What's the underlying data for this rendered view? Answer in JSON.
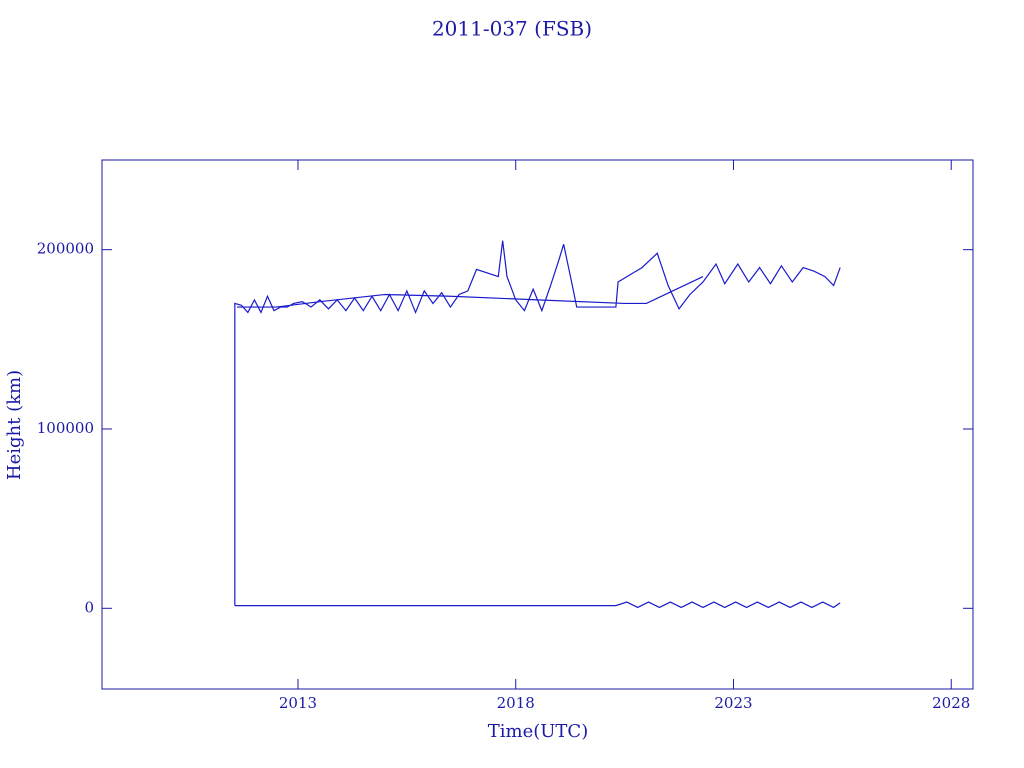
{
  "chart_data": {
    "type": "line",
    "title": "2011-037 (FSB)",
    "x_label": "Time(UTC)",
    "y_label": "Height (km)",
    "color": "#1a1acc",
    "xlim": [
      2008.5,
      2028.5
    ],
    "xticks": [
      2013,
      2018,
      2023,
      2028
    ],
    "ylim": [
      -45000,
      250000
    ],
    "yticks": [
      0,
      100000,
      200000
    ],
    "x": [
      2011.55,
      2011.55,
      2011.7,
      2011.85,
      2012.0,
      2012.15,
      2012.3,
      2012.45,
      2012.6,
      2012.75,
      2012.9,
      2013.1,
      2013.3,
      2013.5,
      2013.7,
      2013.9,
      2014.1,
      2014.3,
      2014.5,
      2014.7,
      2014.9,
      2015.1,
      2015.3,
      2015.5,
      2015.7,
      2015.9,
      2016.1,
      2016.3,
      2016.5,
      2016.7,
      2016.9,
      2017.1,
      2017.6,
      2017.7,
      2017.8,
      2018.0,
      2018.2,
      2018.4,
      2018.6,
      2018.8,
      2019.0,
      2019.1,
      2019.3,
      2019.4,
      2020.3,
      2020.35,
      2020.9,
      2021.25,
      2021.5,
      2021.75,
      2022.0,
      2022.3,
      2022.6,
      2022.8,
      2023.1,
      2023.35,
      2023.6,
      2023.85,
      2024.1,
      2024.35,
      2024.6,
      2024.85,
      2025.1,
      2025.3,
      2025.45,
      null,
      2011.6,
      2012.5,
      2013.5,
      2015.0,
      2016.5,
      2018.5,
      2020.5,
      2021.0,
      2022.3,
      null,
      2011.55,
      2020.3,
      2020.55,
      2020.8,
      2021.05,
      2021.3,
      2021.55,
      2021.8,
      2022.05,
      2022.3,
      2022.55,
      2022.8,
      2023.05,
      2023.3,
      2023.55,
      2023.8,
      2024.05,
      2024.3,
      2024.55,
      2024.8,
      2025.05,
      2025.3,
      2025.45
    ],
    "values": [
      1500,
      170000,
      169000,
      165000,
      172000,
      165000,
      174000,
      166000,
      168000,
      168000,
      170000,
      171000,
      168000,
      172000,
      167000,
      172000,
      166000,
      173000,
      166000,
      174000,
      166000,
      175000,
      166000,
      177000,
      165000,
      177000,
      170000,
      176000,
      168000,
      175000,
      177000,
      189000,
      185000,
      205000,
      185000,
      172000,
      166000,
      178000,
      166000,
      180000,
      195000,
      203000,
      180000,
      168000,
      168000,
      182000,
      190000,
      198000,
      180000,
      167000,
      175000,
      182000,
      192000,
      181000,
      192000,
      182000,
      190000,
      181000,
      191000,
      182000,
      190000,
      188000,
      185000,
      180000,
      190000,
      null,
      168000,
      168000,
      171000,
      175000,
      174000,
      172000,
      170000,
      170000,
      185000,
      null,
      1500,
      1500,
      3500,
      500,
      3500,
      500,
      3500,
      500,
      3500,
      500,
      3500,
      500,
      3500,
      500,
      3500,
      500,
      3500,
      500,
      3500,
      500,
      3500,
      500,
      3000
    ]
  }
}
